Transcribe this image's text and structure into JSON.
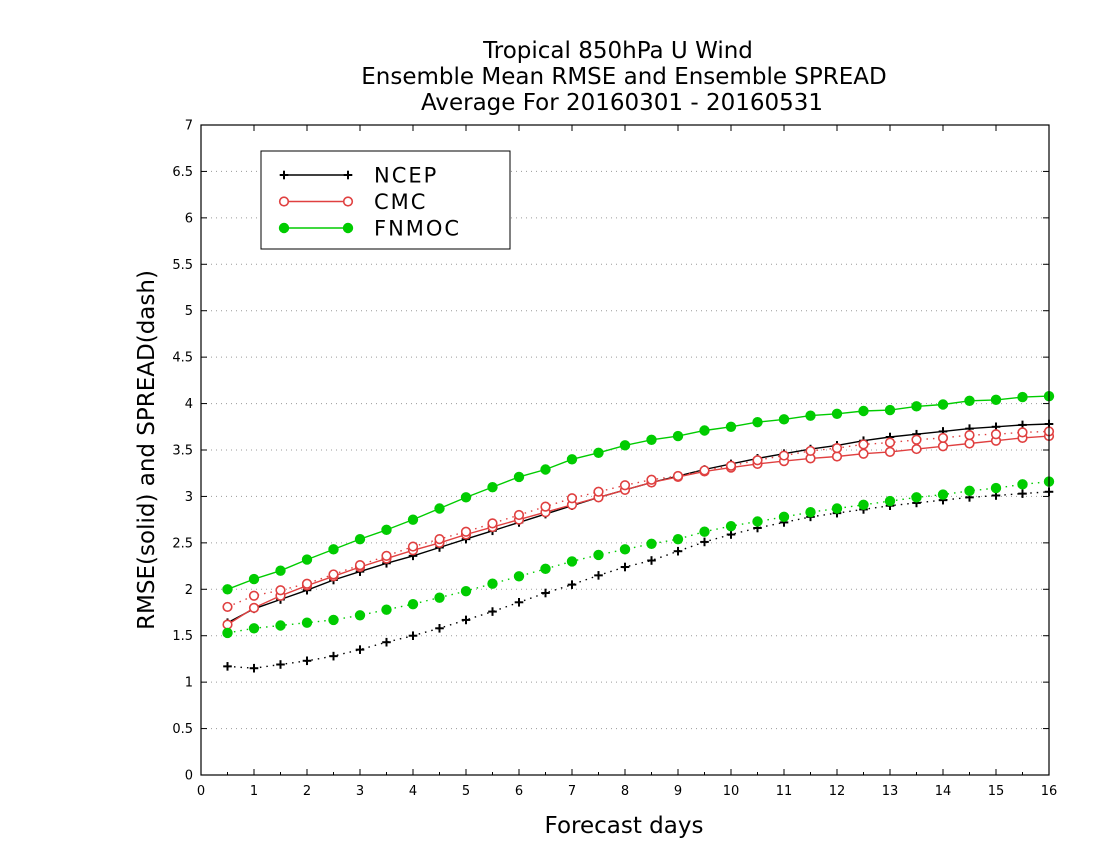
{
  "chart_data": {
    "type": "line",
    "title_lines": [
      "Tropical 850hPa U Wind",
      "Ensemble Mean RMSE and Ensemble SPREAD",
      "Average For 20160301 - 20160531"
    ],
    "xlabel": "Forecast days",
    "ylabel": "RMSE(solid) and SPREAD(dash)",
    "xlim": [
      0,
      16
    ],
    "ylim": [
      0,
      7
    ],
    "x_ticks": [
      "0",
      "1",
      "2",
      "3",
      "4",
      "5",
      "6",
      "7",
      "8",
      "9",
      "10",
      "11",
      "12",
      "13",
      "14",
      "15",
      "16"
    ],
    "y_ticks": [
      "0",
      "0.5",
      "1",
      "1.5",
      "2",
      "2.5",
      "3",
      "3.5",
      "4",
      "4.5",
      "5",
      "5.5",
      "6",
      "6.5",
      "7"
    ],
    "grid": "horizontal dotted",
    "legend_position": "top-left",
    "x": [
      0.5,
      1,
      1.5,
      2,
      2.5,
      3,
      3.5,
      4,
      4.5,
      5,
      5.5,
      6,
      6.5,
      7,
      7.5,
      8,
      8.5,
      9,
      9.5,
      10,
      10.5,
      11,
      11.5,
      12,
      12.5,
      13,
      13.5,
      14,
      14.5,
      15,
      15.5,
      16
    ],
    "series": [
      {
        "name": "NCEP",
        "metric": "RMSE",
        "style": "solid",
        "marker": "plus",
        "color": "#000000",
        "values": [
          1.64,
          1.79,
          1.89,
          1.99,
          2.1,
          2.19,
          2.28,
          2.36,
          2.45,
          2.54,
          2.63,
          2.72,
          2.81,
          2.9,
          2.99,
          3.07,
          3.15,
          3.22,
          3.29,
          3.35,
          3.41,
          3.46,
          3.51,
          3.55,
          3.6,
          3.64,
          3.67,
          3.7,
          3.73,
          3.75,
          3.77,
          3.78
        ]
      },
      {
        "name": "CMC",
        "metric": "RMSE",
        "style": "solid",
        "marker": "open-circle",
        "color": "#e04040",
        "values": [
          1.62,
          1.8,
          1.93,
          2.04,
          2.14,
          2.24,
          2.33,
          2.42,
          2.5,
          2.59,
          2.67,
          2.75,
          2.83,
          2.91,
          2.99,
          3.07,
          3.15,
          3.21,
          3.27,
          3.31,
          3.35,
          3.38,
          3.41,
          3.43,
          3.46,
          3.48,
          3.51,
          3.54,
          3.57,
          3.6,
          3.63,
          3.65
        ]
      },
      {
        "name": "FNMOC",
        "metric": "RMSE",
        "style": "solid",
        "marker": "filled-circle",
        "color": "#00cc00",
        "values": [
          2.0,
          2.11,
          2.2,
          2.32,
          2.43,
          2.54,
          2.64,
          2.75,
          2.87,
          2.99,
          3.1,
          3.21,
          3.29,
          3.4,
          3.47,
          3.55,
          3.61,
          3.65,
          3.71,
          3.75,
          3.8,
          3.83,
          3.87,
          3.89,
          3.92,
          3.93,
          3.97,
          3.99,
          4.03,
          4.04,
          4.07,
          4.08
        ]
      },
      {
        "name": "NCEP",
        "metric": "SPREAD",
        "style": "dash",
        "marker": "plus",
        "color": "#000000",
        "values": [
          1.17,
          1.15,
          1.19,
          1.23,
          1.28,
          1.35,
          1.43,
          1.5,
          1.58,
          1.67,
          1.76,
          1.86,
          1.96,
          2.05,
          2.15,
          2.24,
          2.31,
          2.41,
          2.51,
          2.59,
          2.66,
          2.72,
          2.78,
          2.82,
          2.86,
          2.9,
          2.93,
          2.96,
          2.99,
          3.01,
          3.03,
          3.05
        ]
      },
      {
        "name": "CMC",
        "metric": "SPREAD",
        "style": "dash",
        "marker": "open-circle",
        "color": "#e04040",
        "values": [
          1.81,
          1.93,
          1.99,
          2.06,
          2.16,
          2.26,
          2.36,
          2.46,
          2.54,
          2.62,
          2.71,
          2.8,
          2.89,
          2.98,
          3.05,
          3.12,
          3.18,
          3.22,
          3.28,
          3.33,
          3.39,
          3.44,
          3.49,
          3.52,
          3.56,
          3.58,
          3.61,
          3.63,
          3.66,
          3.67,
          3.69,
          3.7
        ]
      },
      {
        "name": "FNMOC",
        "metric": "SPREAD",
        "style": "dash",
        "marker": "filled-circle",
        "color": "#00cc00",
        "values": [
          1.53,
          1.58,
          1.61,
          1.64,
          1.67,
          1.72,
          1.78,
          1.84,
          1.91,
          1.98,
          2.06,
          2.14,
          2.22,
          2.3,
          2.37,
          2.43,
          2.49,
          2.54,
          2.62,
          2.68,
          2.73,
          2.78,
          2.83,
          2.87,
          2.91,
          2.95,
          2.99,
          3.02,
          3.06,
          3.09,
          3.13,
          3.16
        ]
      }
    ],
    "legend": [
      {
        "name": "NCEP",
        "color": "#000000",
        "marker": "plus"
      },
      {
        "name": "CMC",
        "color": "#e04040",
        "marker": "open-circle"
      },
      {
        "name": "FNMOC",
        "color": "#00cc00",
        "marker": "filled-circle"
      }
    ]
  }
}
